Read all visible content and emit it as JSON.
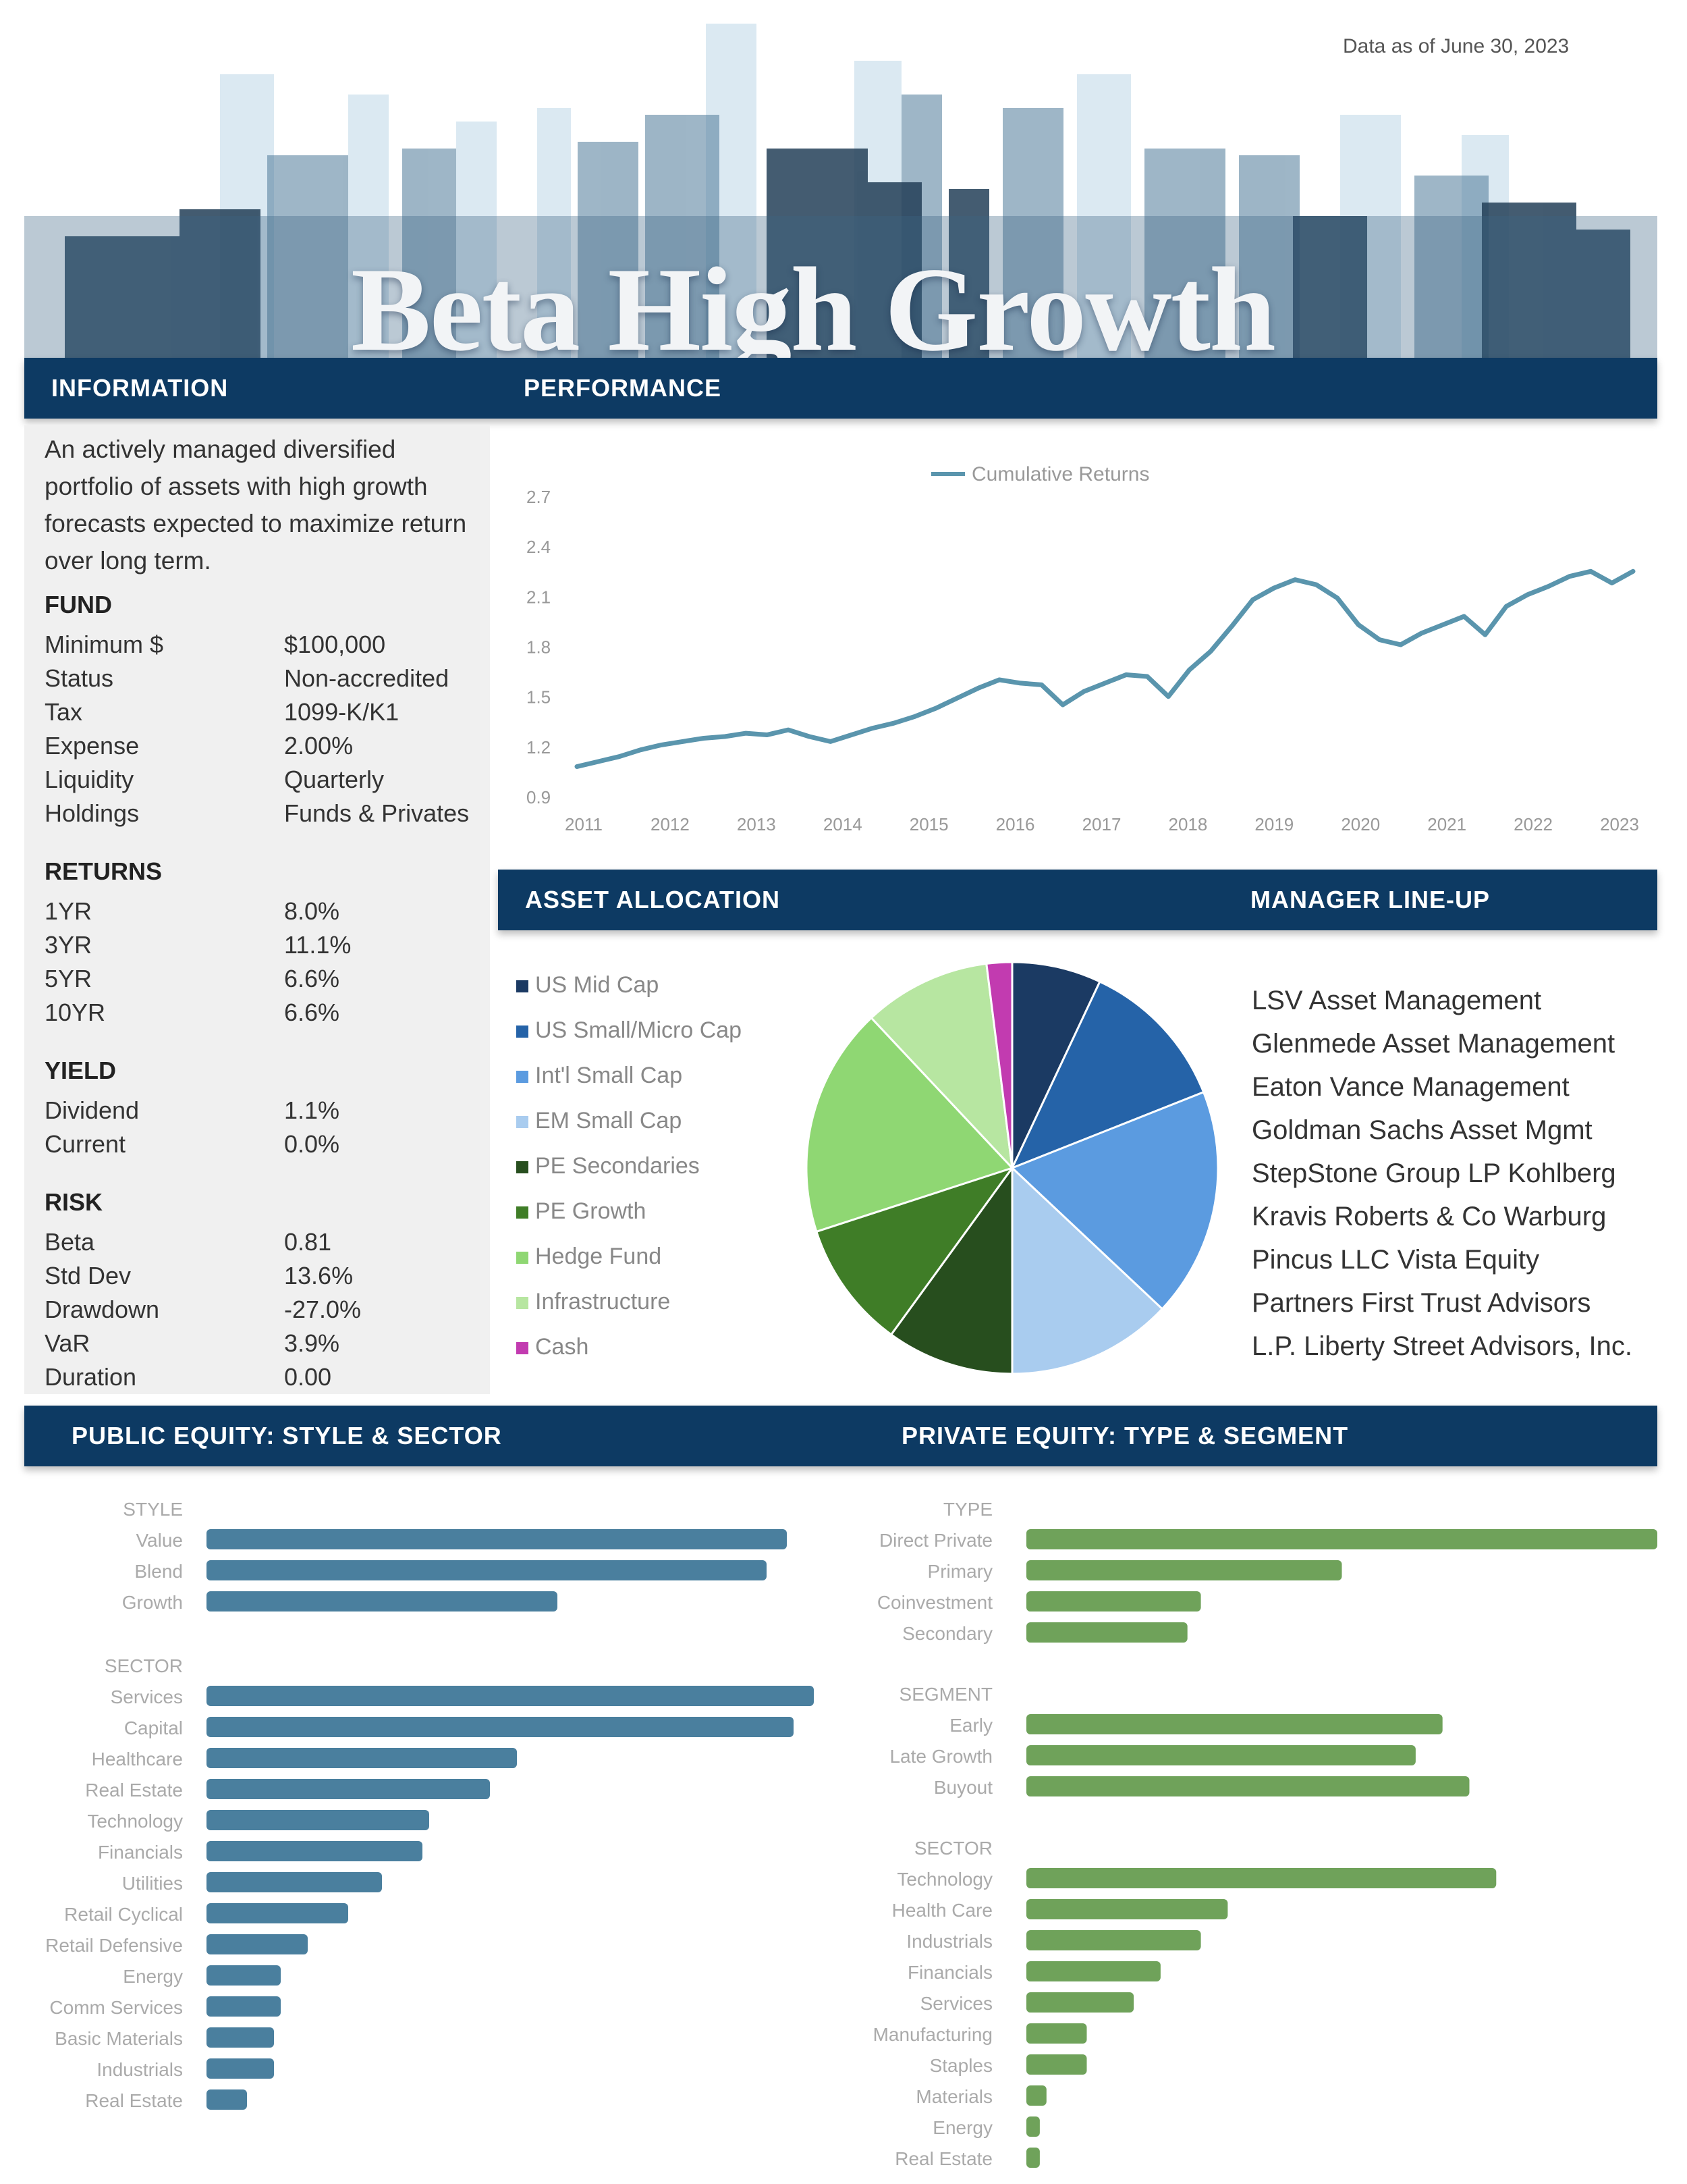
{
  "header": {
    "date_note": "Data as of June 30, 2023",
    "title": "Beta High Growth"
  },
  "sections": {
    "information": "INFORMATION",
    "performance": "PERFORMANCE",
    "asset_allocation": "ASSET ALLOCATION",
    "manager_lineup": "MANAGER LINE-UP",
    "public_equity": "PUBLIC EQUITY: STYLE & SECTOR",
    "private_equity": "PRIVATE EQUITY: TYPE & SEGMENT"
  },
  "information": {
    "description": "An actively managed diversified portfolio of assets with high growth forecasts expected to maximize return over long term.",
    "fund": {
      "heading": "FUND",
      "rows": [
        {
          "k": "Minimum $",
          "v": "$100,000"
        },
        {
          "k": "Status",
          "v": "Non-accredited"
        },
        {
          "k": "Tax",
          "v": "1099-K/K1"
        },
        {
          "k": "Expense",
          "v": "2.00%"
        },
        {
          "k": "Liquidity",
          "v": "Quarterly"
        },
        {
          "k": "Holdings",
          "v": "Funds & Privates"
        }
      ]
    },
    "returns": {
      "heading": "RETURNS",
      "rows": [
        {
          "k": "1YR",
          "v": "8.0%"
        },
        {
          "k": "3YR",
          "v": "11.1%"
        },
        {
          "k": "5YR",
          "v": "6.6%"
        },
        {
          "k": "10YR",
          "v": "6.6%"
        }
      ]
    },
    "yield": {
      "heading": "YIELD",
      "rows": [
        {
          "k": "Dividend",
          "v": "1.1%"
        },
        {
          "k": "Current",
          "v": "0.0%"
        }
      ]
    },
    "risk": {
      "heading": "RISK",
      "rows": [
        {
          "k": "Beta",
          "v": "0.81"
        },
        {
          "k": "Std Dev",
          "v": "13.6%"
        },
        {
          "k": "Drawdown",
          "v": "-27.0%"
        },
        {
          "k": "VaR",
          "v": "3.9%"
        },
        {
          "k": "Duration",
          "v": "0.00"
        }
      ]
    }
  },
  "chart_data": [
    {
      "type": "line",
      "legend": "Cumulative Returns",
      "series": [
        {
          "name": "Cumulative Returns",
          "values": [
            1.08,
            1.11,
            1.14,
            1.18,
            1.21,
            1.23,
            1.25,
            1.26,
            1.28,
            1.27,
            1.3,
            1.26,
            1.23,
            1.27,
            1.31,
            1.34,
            1.38,
            1.43,
            1.49,
            1.55,
            1.6,
            1.58,
            1.57,
            1.45,
            1.53,
            1.58,
            1.63,
            1.62,
            1.5,
            1.66,
            1.77,
            1.92,
            2.08,
            2.15,
            2.2,
            2.17,
            2.09,
            1.93,
            1.84,
            1.81,
            1.88,
            1.93,
            1.98,
            1.87,
            2.04,
            2.11,
            2.16,
            2.22,
            2.25,
            2.18,
            2.25
          ]
        }
      ],
      "x_ticks": [
        "2011",
        "2012",
        "2013",
        "2014",
        "2015",
        "2016",
        "2017",
        "2018",
        "2019",
        "2020",
        "2021",
        "2022",
        "2023"
      ],
      "y_ticks": [
        "0.9",
        "1.2",
        "1.5",
        "1.8",
        "2.1",
        "2.4",
        "2.7"
      ],
      "ylim": [
        0.9,
        2.7
      ]
    },
    {
      "type": "pie",
      "legend_position": "left",
      "slices": [
        {
          "label": "US Mid Cap",
          "value": 7,
          "color": "#1b3a63"
        },
        {
          "label": "US Small/Micro Cap",
          "value": 12,
          "color": "#2563a8"
        },
        {
          "label": "Int'l Small Cap",
          "value": 18,
          "color": "#5b9be0"
        },
        {
          "label": "EM Small Cap",
          "value": 13,
          "color": "#a9ccef"
        },
        {
          "label": "PE Secondaries",
          "value": 10,
          "color": "#274e1e"
        },
        {
          "label": "PE Growth",
          "value": 10,
          "color": "#3f7d27"
        },
        {
          "label": "Hedge Fund",
          "value": 18,
          "color": "#8fd773"
        },
        {
          "label": "Infrastructure",
          "value": 10,
          "color": "#b7e6a1"
        },
        {
          "label": "Cash",
          "value": 2,
          "color": "#c23bb0"
        }
      ]
    },
    {
      "type": "bar",
      "groups": [
        {
          "heading": "STYLE",
          "categories": [
            "Value",
            "Blend",
            "Growth"
          ],
          "values": [
            43,
            41.5,
            26
          ]
        },
        {
          "heading": "SECTOR",
          "categories": [
            "Services",
            "Capital",
            "Healthcare",
            "Real Estate",
            "Technology",
            "Financials",
            "Utilities",
            "Retail Cyclical",
            "Retail Defensive",
            "Energy",
            "Comm Services",
            "Basic Materials",
            "Industrials",
            "Real Estate"
          ],
          "values": [
            45,
            43.5,
            23,
            21,
            16.5,
            16,
            13,
            10.5,
            7.5,
            5.5,
            5.5,
            5,
            5,
            3
          ]
        }
      ],
      "xlim": [
        0,
        45
      ]
    },
    {
      "type": "bar",
      "groups": [
        {
          "heading": "TYPE",
          "categories": [
            "Direct Private",
            "Primary",
            "Coinvestment",
            "Secondary"
          ],
          "values": [
            47,
            23.5,
            13,
            12
          ]
        },
        {
          "heading": "SEGMENT",
          "categories": [
            "Early",
            "Late Growth",
            "Buyout"
          ],
          "values": [
            31,
            29,
            33
          ]
        },
        {
          "heading": "SECTOR",
          "categories": [
            "Technology",
            "Health Care",
            "Industrials",
            "Financials",
            "Services",
            "Manufacturing",
            "Staples",
            "Materials",
            "Energy",
            "Real Estate"
          ],
          "values": [
            35,
            15,
            13,
            10,
            8,
            4.5,
            4.5,
            1.5,
            1,
            1
          ]
        }
      ],
      "xlim": [
        0,
        47
      ]
    }
  ],
  "managers": [
    "LSV Asset Management",
    "Glenmede Asset Management",
    "Eaton Vance Management",
    "Goldman Sachs Asset Mgmt",
    "StepStone Group LP Kohlberg",
    "Kravis Roberts & Co Warburg",
    "Pincus LLC Vista Equity",
    "Partners First Trust Advisors",
    "L.P. Liberty Street Advisors, Inc."
  ],
  "colors": {
    "navy": "#0d3a63",
    "line": "#5a95ad",
    "public_bar": "#4a7f9e",
    "private_bar": "#6fa25a"
  }
}
